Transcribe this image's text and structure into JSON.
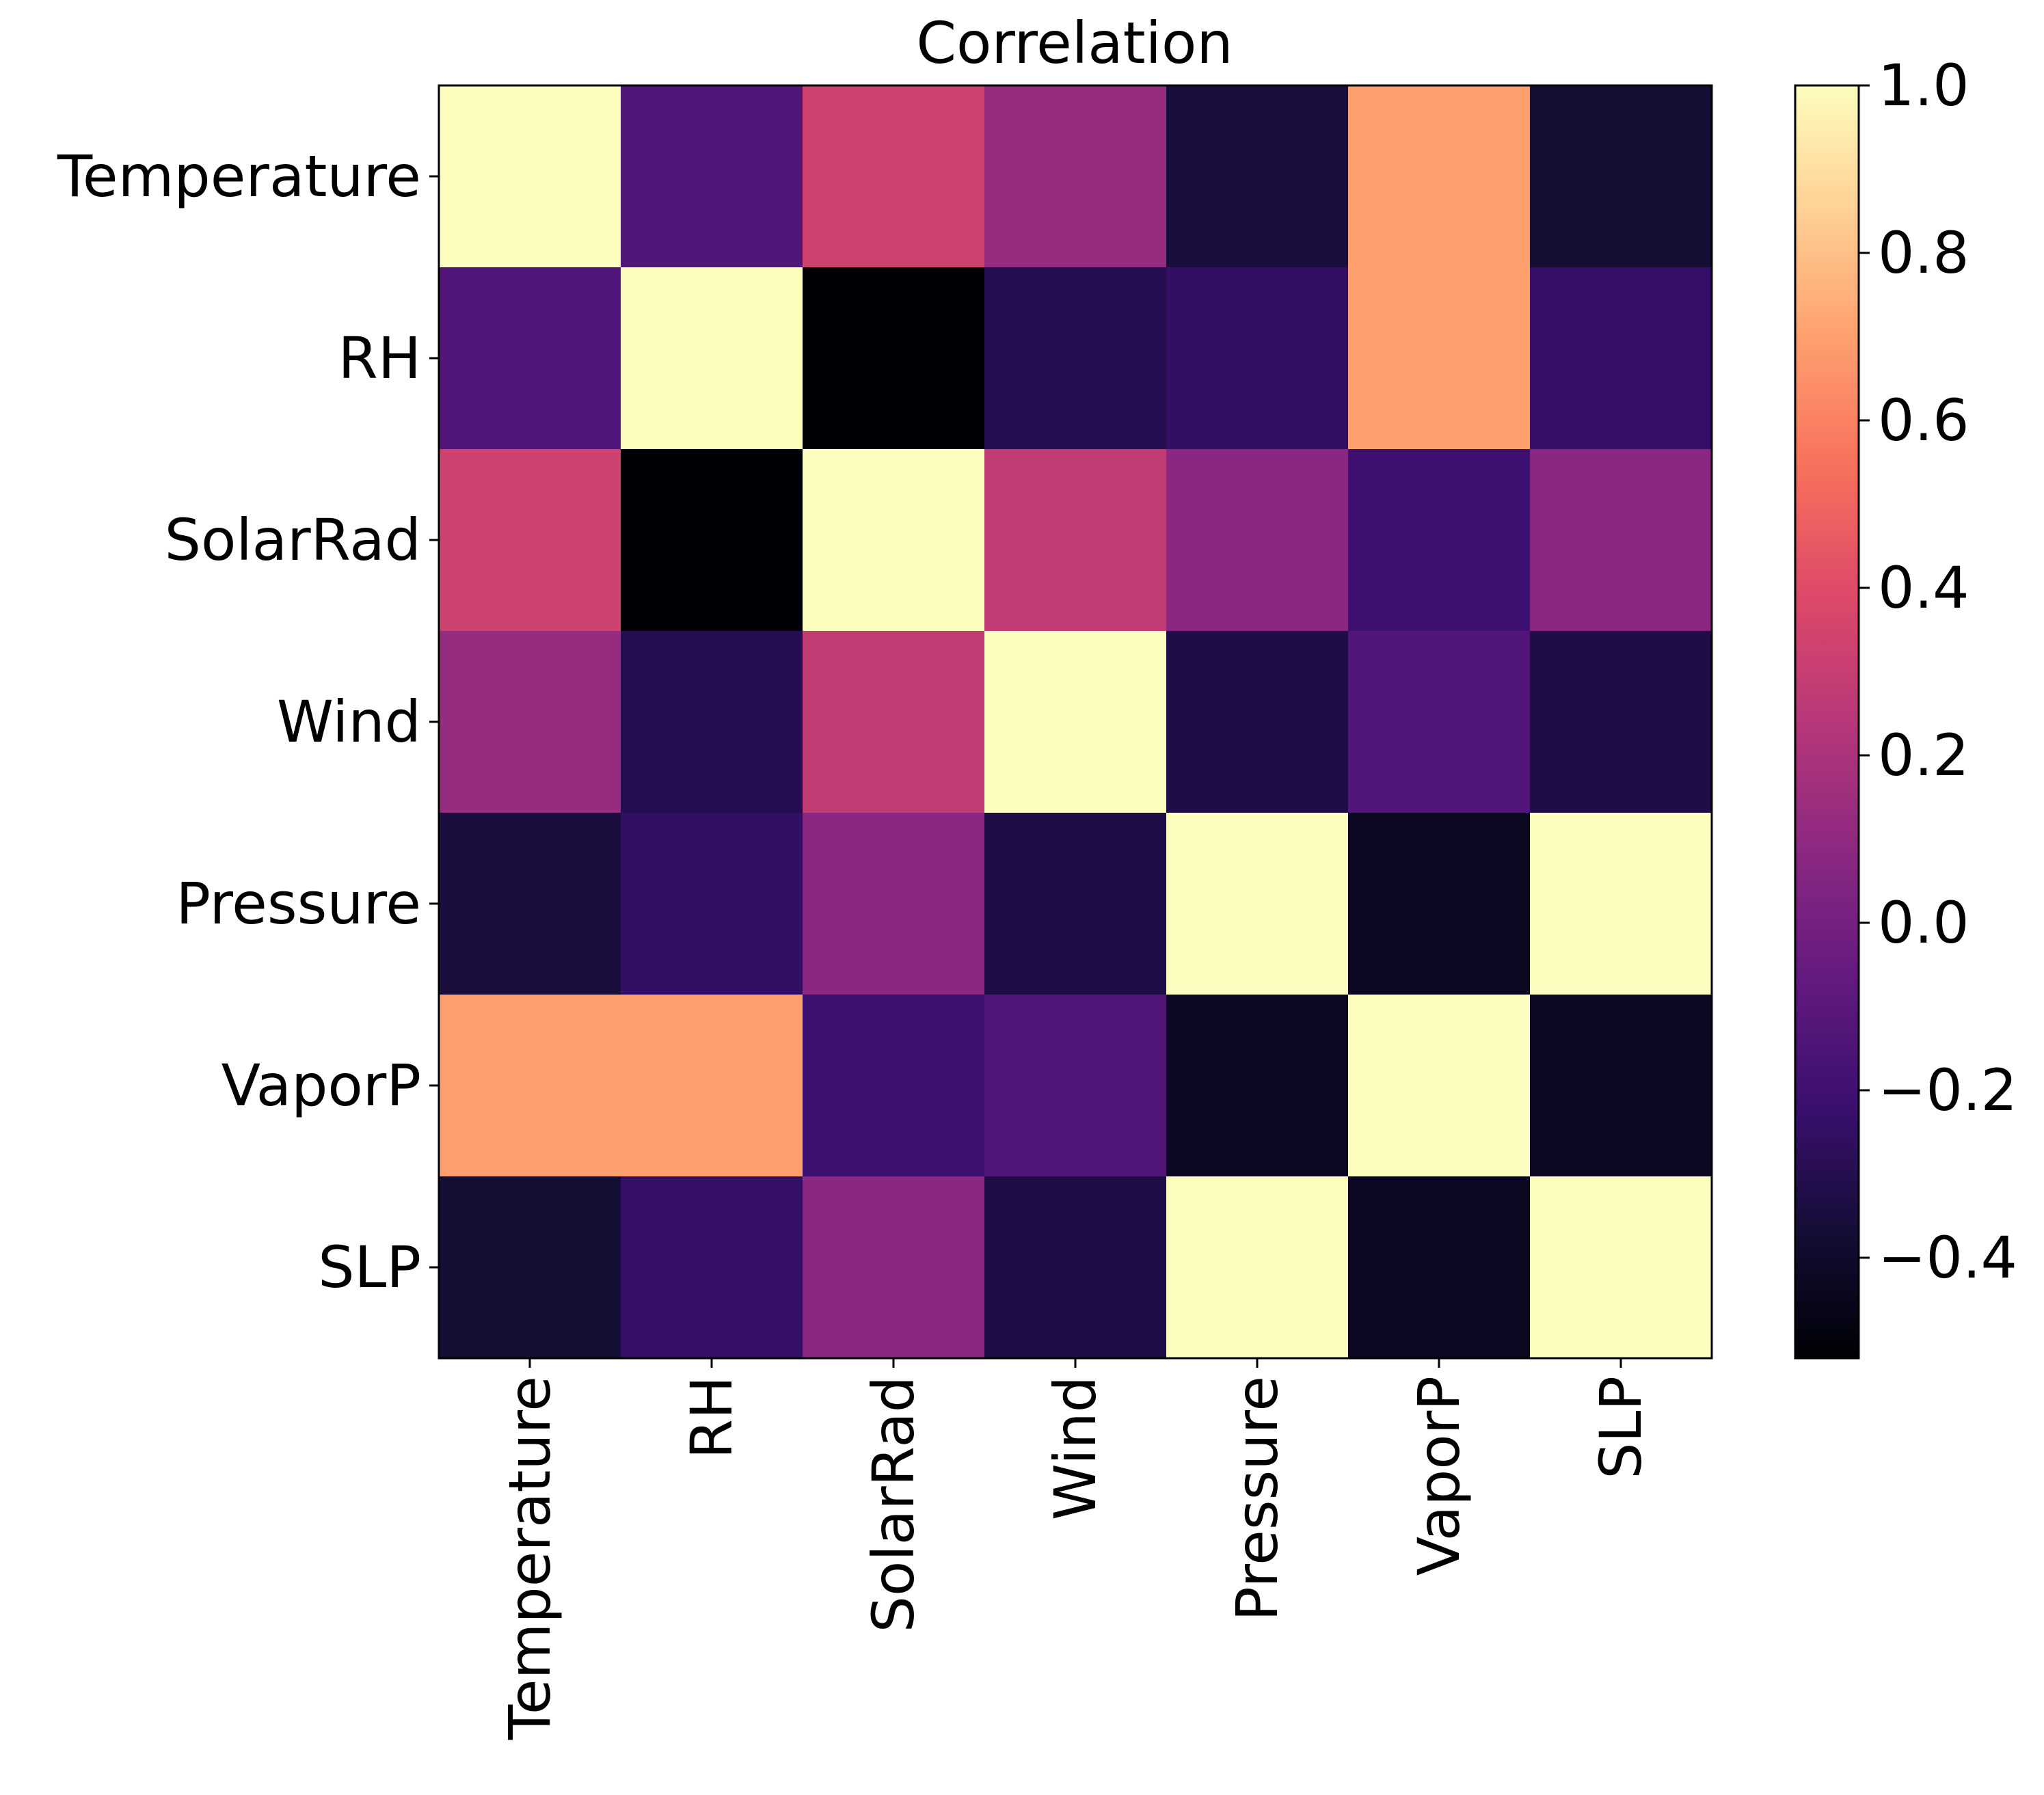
{
  "chart_data": {
    "type": "heatmap",
    "title": "Correlation",
    "xlabel": "",
    "ylabel": "",
    "x_categories": [
      "Temperature",
      "RH",
      "SolarRad",
      "Wind",
      "Pressure",
      "VaporP",
      "SLP"
    ],
    "y_categories": [
      "Temperature",
      "RH",
      "SolarRad",
      "Wind",
      "Pressure",
      "VaporP",
      "SLP"
    ],
    "matrix": [
      [
        1.0,
        -0.13,
        0.33,
        0.12,
        -0.35,
        0.7,
        -0.37
      ],
      [
        -0.13,
        1.0,
        -0.52,
        -0.3,
        -0.25,
        0.7,
        -0.24
      ],
      [
        0.33,
        -0.52,
        1.0,
        0.28,
        0.08,
        -0.21,
        0.08
      ],
      [
        0.12,
        -0.3,
        0.28,
        1.0,
        -0.33,
        -0.13,
        -0.33
      ],
      [
        -0.35,
        -0.25,
        0.08,
        -0.33,
        1.0,
        -0.43,
        1.0
      ],
      [
        0.7,
        0.7,
        -0.21,
        -0.13,
        -0.43,
        1.0,
        -0.43
      ],
      [
        -0.37,
        -0.24,
        0.08,
        -0.33,
        1.0,
        -0.43,
        1.0
      ]
    ],
    "colormap": "magma",
    "colorbar": {
      "range": [
        -0.52,
        1.0
      ],
      "ticks": [
        -0.4,
        -0.2,
        0.0,
        0.2,
        0.4,
        0.6,
        0.8,
        1.0
      ],
      "tick_labels": [
        "−0.4",
        "−0.2",
        "0.0",
        "0.2",
        "0.4",
        "0.6",
        "0.8",
        "1.0"
      ]
    },
    "grid": false,
    "legend": "none"
  }
}
